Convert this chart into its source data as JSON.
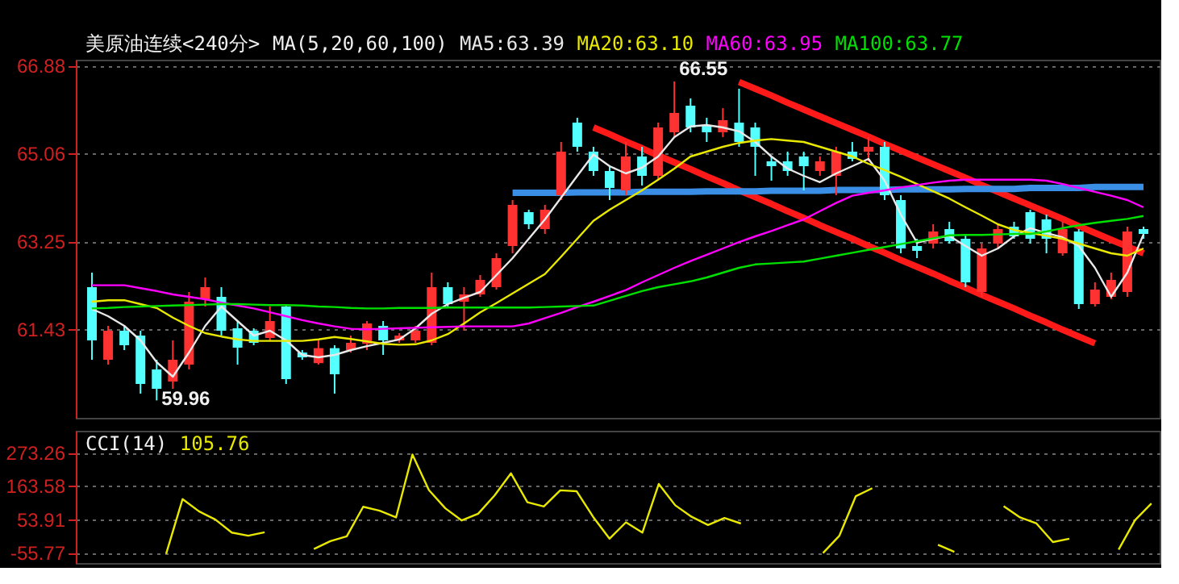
{
  "chart_data": [
    {
      "type": "candlestick",
      "title": "美原油连续<240分>",
      "legend_title": "MA(5,20,60,100)",
      "grid": "y",
      "tick_labels": "y",
      "categories": [
        null,
        null,
        null,
        null,
        null,
        null,
        null,
        null,
        null,
        null,
        null,
        null,
        null,
        null,
        null,
        null,
        null,
        null,
        null,
        null,
        null,
        null,
        null,
        null,
        null,
        null,
        null,
        null,
        null,
        null,
        null,
        null,
        null,
        null,
        null,
        null,
        null,
        null,
        null,
        null,
        null,
        null,
        null,
        null,
        null,
        null,
        null,
        null,
        null,
        null,
        null,
        null,
        null,
        null,
        null,
        null,
        null,
        null,
        null,
        null,
        null,
        null,
        null,
        null,
        null,
        null
      ],
      "ylim": [
        59.6,
        67.0
      ],
      "yticks": [
        61.43,
        63.25,
        65.06,
        66.88
      ],
      "ohlc": [
        [
          62.3,
          62.6,
          60.8,
          61.2
        ],
        [
          60.8,
          61.5,
          60.7,
          61.4
        ],
        [
          61.4,
          61.5,
          61.0,
          61.1
        ],
        [
          61.3,
          61.4,
          60.1,
          60.3
        ],
        [
          60.6,
          60.8,
          59.96,
          60.2
        ],
        [
          60.35,
          61.2,
          60.2,
          60.8
        ],
        [
          60.7,
          62.2,
          60.6,
          62.0
        ],
        [
          62.05,
          62.5,
          61.9,
          62.3
        ],
        [
          62.1,
          62.3,
          61.3,
          61.4
        ],
        [
          61.45,
          61.6,
          60.7,
          61.05
        ],
        [
          61.4,
          61.45,
          61.1,
          61.15
        ],
        [
          61.25,
          61.9,
          61.2,
          61.6
        ],
        [
          61.9,
          61.95,
          60.3,
          60.4
        ],
        [
          60.95,
          61.0,
          60.8,
          60.85
        ],
        [
          60.73,
          61.2,
          60.7,
          61.04
        ],
        [
          61.04,
          61.1,
          60.1,
          60.5
        ],
        [
          61.0,
          61.3,
          60.95,
          61.15
        ],
        [
          61.13,
          61.6,
          61.0,
          61.55
        ],
        [
          61.5,
          61.6,
          60.9,
          61.2
        ],
        [
          61.2,
          61.35,
          61.15,
          61.3
        ],
        [
          61.2,
          61.5,
          61.15,
          61.4
        ],
        [
          61.15,
          62.6,
          61.1,
          62.3
        ],
        [
          62.3,
          62.4,
          61.9,
          61.95
        ],
        [
          62.0,
          62.3,
          61.4,
          62.15
        ],
        [
          62.15,
          62.55,
          62.1,
          62.45
        ],
        [
          62.3,
          63.0,
          62.25,
          62.9
        ],
        [
          63.15,
          64.1,
          63.0,
          64.0
        ],
        [
          63.85,
          63.9,
          63.5,
          63.6
        ],
        [
          63.5,
          64.0,
          63.4,
          63.9
        ],
        [
          64.2,
          65.3,
          64.1,
          65.1
        ],
        [
          65.7,
          65.8,
          65.1,
          65.2
        ],
        [
          65.1,
          65.2,
          64.6,
          64.7
        ],
        [
          64.7,
          64.8,
          64.1,
          64.35
        ],
        [
          64.3,
          65.3,
          64.2,
          65.0
        ],
        [
          65.0,
          65.2,
          64.4,
          64.6
        ],
        [
          64.6,
          65.7,
          64.5,
          65.6
        ],
        [
          65.5,
          66.55,
          65.4,
          65.9
        ],
        [
          66.05,
          66.2,
          65.5,
          65.6
        ],
        [
          65.65,
          65.8,
          65.3,
          65.5
        ],
        [
          65.5,
          66.0,
          65.4,
          65.75
        ],
        [
          65.7,
          66.4,
          65.2,
          65.3
        ],
        [
          65.6,
          65.7,
          64.6,
          65.2
        ],
        [
          64.9,
          65.0,
          64.5,
          64.8
        ],
        [
          64.9,
          65.1,
          64.6,
          64.7
        ],
        [
          65.0,
          65.1,
          64.3,
          64.8
        ],
        [
          64.7,
          65.0,
          64.6,
          64.9
        ],
        [
          64.6,
          65.2,
          64.2,
          65.1
        ],
        [
          65.1,
          65.3,
          64.9,
          64.95
        ],
        [
          65.1,
          65.4,
          64.9,
          65.2
        ],
        [
          65.2,
          65.3,
          64.1,
          64.2
        ],
        [
          64.1,
          64.2,
          63.0,
          63.1
        ],
        [
          63.15,
          63.3,
          62.9,
          63.05
        ],
        [
          63.2,
          63.6,
          63.1,
          63.45
        ],
        [
          63.5,
          63.65,
          63.2,
          63.25
        ],
        [
          63.3,
          63.4,
          62.3,
          62.4
        ],
        [
          62.2,
          63.2,
          62.1,
          63.1
        ],
        [
          63.2,
          63.6,
          63.1,
          63.5
        ],
        [
          63.55,
          63.65,
          63.3,
          63.35
        ],
        [
          63.85,
          63.9,
          63.2,
          63.3
        ],
        [
          63.7,
          63.8,
          63.0,
          63.3
        ],
        [
          63.0,
          63.65,
          62.95,
          63.5
        ],
        [
          63.45,
          63.5,
          61.85,
          61.95
        ],
        [
          61.95,
          62.4,
          61.9,
          62.25
        ],
        [
          62.1,
          62.6,
          62.05,
          62.45
        ],
        [
          62.2,
          63.55,
          62.1,
          63.45
        ],
        [
          63.5,
          63.55,
          63.3,
          63.4
        ]
      ],
      "colors": [
        "#54ffff",
        "#ff3232",
        "#54ffff",
        "#54ffff",
        "#54ffff",
        "#ff3232",
        "#ff3232",
        "#ff3232",
        "#54ffff",
        "#54ffff",
        "#54ffff",
        "#ff3232",
        "#54ffff",
        "#54ffff",
        "#ff3232",
        "#54ffff",
        "#ff3232",
        "#ff3232",
        "#54ffff",
        "#ff3232",
        "#ff3232",
        "#ff3232",
        "#54ffff",
        "#ff3232",
        "#ff3232",
        "#ff3232",
        "#ff3232",
        "#54ffff",
        "#ff3232",
        "#ff3232",
        "#54ffff",
        "#54ffff",
        "#54ffff",
        "#ff3232",
        "#54ffff",
        "#ff3232",
        "#ff3232",
        "#54ffff",
        "#54ffff",
        "#ff3232",
        "#54ffff",
        "#54ffff",
        "#54ffff",
        "#54ffff",
        "#54ffff",
        "#ff3232",
        "#ff3232",
        "#54ffff",
        "#ff3232",
        "#54ffff",
        "#54ffff",
        "#54ffff",
        "#ff3232",
        "#54ffff",
        "#54ffff",
        "#ff3232",
        "#ff3232",
        "#54ffff",
        "#54ffff",
        "#54ffff",
        "#ff3232",
        "#54ffff",
        "#ff3232",
        "#ff3232",
        "#ff3232",
        "#54ffff"
      ],
      "series": [
        {
          "type": "line",
          "name": "MA5:63.39",
          "color": "#e8e8e8",
          "values": [
            61.85,
            61.7,
            61.5,
            61.2,
            60.75,
            60.45,
            60.95,
            61.5,
            61.9,
            61.6,
            61.3,
            61.4,
            61.2,
            60.9,
            60.85,
            60.9,
            61.0,
            61.08,
            61.15,
            61.22,
            61.45,
            61.75,
            61.95,
            62.08,
            62.2,
            62.55,
            62.9,
            63.3,
            63.7,
            64.15,
            64.6,
            65.04,
            64.8,
            64.65,
            64.77,
            65.0,
            65.4,
            65.62,
            65.65,
            65.6,
            65.52,
            65.3,
            65.0,
            64.75,
            64.6,
            64.47,
            64.65,
            64.8,
            64.95,
            64.5,
            63.8,
            63.22,
            63.3,
            63.36,
            63.15,
            62.95,
            63.1,
            63.35,
            63.52,
            63.42,
            63.33,
            63.15,
            62.7,
            62.1,
            62.6,
            63.39
          ]
        },
        {
          "type": "line",
          "name": "MA20:63.10",
          "color": "#e8e800",
          "values": [
            62.0,
            62.03,
            62.03,
            61.95,
            61.87,
            61.67,
            61.5,
            61.35,
            61.28,
            61.22,
            61.19,
            61.19,
            61.19,
            61.19,
            61.22,
            61.27,
            61.23,
            61.18,
            61.13,
            61.11,
            61.12,
            61.2,
            61.33,
            61.55,
            61.78,
            61.97,
            62.17,
            62.37,
            62.57,
            62.93,
            63.3,
            63.67,
            63.9,
            64.1,
            64.3,
            64.52,
            64.75,
            65.0,
            65.1,
            65.2,
            65.28,
            65.33,
            65.36,
            65.33,
            65.3,
            65.2,
            65.1,
            65.0,
            64.85,
            64.72,
            64.58,
            64.43,
            64.28,
            64.13,
            63.95,
            63.78,
            63.6,
            63.48,
            63.42,
            63.36,
            63.3,
            63.2,
            63.1,
            63.0,
            62.95,
            63.1
          ]
        },
        {
          "type": "line",
          "name": "MA60:63.95",
          "color": "#ff00ff",
          "values": [
            62.34,
            62.34,
            62.34,
            62.28,
            62.22,
            62.15,
            62.1,
            62.05,
            61.98,
            61.92,
            61.86,
            61.78,
            61.7,
            61.62,
            61.55,
            61.49,
            61.44,
            61.43,
            61.44,
            61.45,
            61.46,
            61.47,
            61.48,
            61.49,
            61.49,
            61.49,
            61.49,
            61.55,
            61.66,
            61.77,
            61.89,
            62.0,
            62.12,
            62.24,
            62.4,
            62.55,
            62.7,
            62.84,
            62.97,
            63.1,
            63.23,
            63.35,
            63.46,
            63.58,
            63.7,
            63.87,
            64.04,
            64.19,
            64.25,
            64.3,
            64.36,
            64.41,
            64.46,
            64.5,
            64.52,
            64.52,
            64.52,
            64.52,
            64.52,
            64.5,
            64.43,
            64.35,
            64.27,
            64.19,
            64.1,
            63.95
          ]
        },
        {
          "type": "line",
          "name": "MA100:63.77",
          "color": "#00e000",
          "values": [
            61.86,
            61.87,
            61.89,
            61.9,
            61.91,
            61.92,
            61.93,
            61.94,
            61.95,
            61.95,
            61.94,
            61.93,
            61.93,
            61.92,
            61.9,
            61.89,
            61.87,
            61.86,
            61.86,
            61.87,
            61.87,
            61.87,
            61.88,
            61.88,
            61.88,
            61.88,
            61.88,
            61.88,
            61.89,
            61.9,
            61.91,
            61.92,
            62.02,
            62.12,
            62.22,
            62.3,
            62.36,
            62.42,
            62.5,
            62.6,
            62.7,
            62.77,
            62.79,
            62.81,
            62.83,
            62.89,
            62.95,
            63.01,
            63.07,
            63.13,
            63.19,
            63.25,
            63.31,
            63.37,
            63.38,
            63.38,
            63.39,
            63.4,
            63.4,
            63.45,
            63.52,
            63.58,
            63.63,
            63.67,
            63.71,
            63.77
          ]
        },
        {
          "type": "line",
          "color": "#ff1a1a",
          "values": [
            null,
            null,
            null,
            null,
            null,
            null,
            null,
            null,
            null,
            null,
            null,
            null,
            null,
            null,
            null,
            null,
            null,
            null,
            null,
            null,
            null,
            null,
            null,
            null,
            null,
            null,
            null,
            null,
            null,
            null,
            null,
            null,
            null,
            null,
            null,
            null,
            null,
            null,
            null,
            null,
            66.54,
            66.4,
            66.26,
            66.11,
            65.97,
            65.83,
            65.69,
            65.55,
            65.41,
            65.26,
            65.12,
            64.98,
            64.84,
            64.7,
            64.56,
            64.41,
            64.27,
            64.13,
            63.99,
            63.85,
            63.71,
            63.56,
            63.42,
            63.28,
            63.14,
            63.0
          ]
        },
        {
          "type": "line",
          "color": "#ff1a1a",
          "values": [
            null,
            null,
            null,
            null,
            null,
            null,
            null,
            null,
            null,
            null,
            null,
            null,
            null,
            null,
            null,
            null,
            null,
            null,
            null,
            null,
            null,
            null,
            null,
            null,
            null,
            null,
            null,
            null,
            null,
            null,
            null,
            65.6,
            65.46,
            65.31,
            65.17,
            65.02,
            64.88,
            64.74,
            64.59,
            64.45,
            64.3,
            64.16,
            64.02,
            63.87,
            63.73,
            63.58,
            63.44,
            63.3,
            63.15,
            63.01,
            62.86,
            62.72,
            62.58,
            62.43,
            62.29,
            62.14,
            62.0,
            61.86,
            61.71,
            61.57,
            61.42,
            61.28,
            61.14,
            null,
            null,
            null
          ]
        },
        {
          "type": "line",
          "color": "#3a8ee6",
          "values": [
            null,
            null,
            null,
            null,
            null,
            null,
            null,
            null,
            null,
            null,
            null,
            null,
            null,
            null,
            null,
            null,
            null,
            null,
            null,
            null,
            null,
            null,
            null,
            null,
            null,
            null,
            64.25,
            64.25,
            64.25,
            64.25,
            64.26,
            64.26,
            64.26,
            64.26,
            64.27,
            64.27,
            64.27,
            64.27,
            64.28,
            64.28,
            64.28,
            64.28,
            64.29,
            64.29,
            64.29,
            64.29,
            64.31,
            64.31,
            64.31,
            64.31,
            64.32,
            64.32,
            64.32,
            64.32,
            64.33,
            64.33,
            64.33,
            64.33,
            64.35,
            64.35,
            64.35,
            64.35,
            64.37,
            64.37,
            64.37,
            64.37
          ]
        }
      ],
      "annotations": [
        "66.55",
        "59.96"
      ]
    },
    {
      "type": "line",
      "title": "CCI(14)",
      "grid": "y",
      "tick_labels": "y",
      "ylim": [
        -90,
        345
      ],
      "yticks": [
        -55.77,
        53.91,
        163.58,
        273.26
      ],
      "categories": [
        null,
        null,
        null,
        null,
        null,
        null,
        null,
        null,
        null,
        null,
        null,
        null,
        null,
        null,
        null,
        null,
        null,
        null,
        null,
        null,
        null,
        null,
        null,
        null,
        null,
        null,
        null,
        null,
        null,
        null,
        null,
        null,
        null,
        null,
        null,
        null,
        null,
        null,
        null,
        null,
        null,
        null,
        null,
        null,
        null,
        null,
        null,
        null,
        null,
        null,
        null,
        null,
        null,
        null,
        null,
        null,
        null,
        null,
        null,
        null,
        null,
        null,
        null,
        null,
        null,
        null
      ],
      "series": [
        {
          "name": "105.76",
          "color": "#e8e800",
          "values": [
            null,
            null,
            null,
            null,
            null,
            -60,
            120,
            80,
            53,
            10,
            0,
            11,
            null,
            null,
            -44,
            -18,
            -2,
            95,
            82,
            60,
            267,
            150,
            90,
            50,
            72,
            132,
            205,
            110,
            96,
            149,
            146,
            62,
            -10,
            44,
            10,
            170,
            100,
            62,
            35,
            58,
            40,
            null,
            null,
            null,
            null,
            -57,
            0,
            130,
            156,
            null,
            null,
            null,
            -30,
            -53,
            null,
            null,
            97,
            60,
            40,
            -21,
            -10,
            null,
            null,
            -46,
            51,
            106
          ]
        }
      ]
    }
  ]
}
